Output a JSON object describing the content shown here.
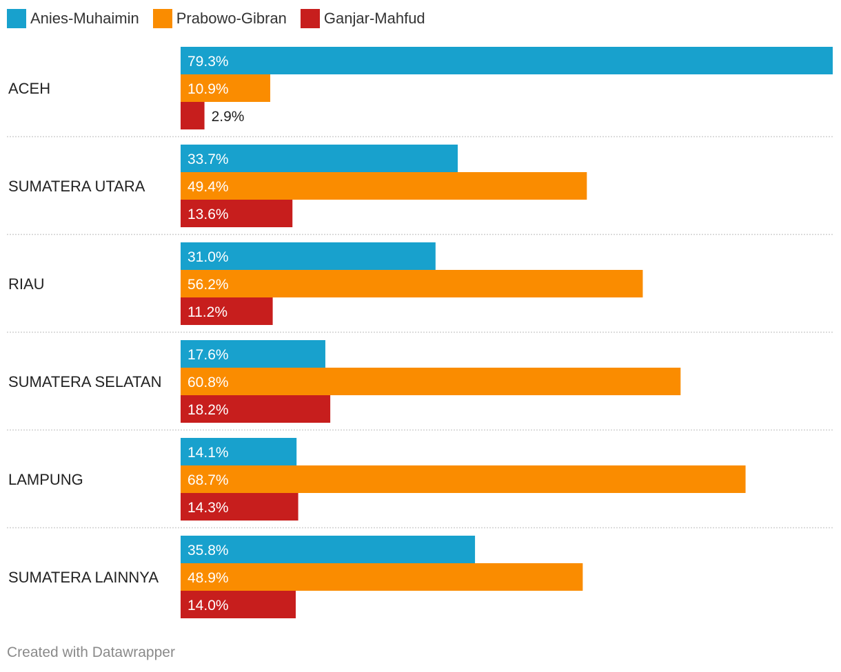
{
  "chart_data": {
    "type": "bar",
    "orientation": "horizontal",
    "grouped": true,
    "categories": [
      "ACEH",
      "SUMATERA UTARA",
      "RIAU",
      "SUMATERA SELATAN",
      "LAMPUNG",
      "SUMATERA LAINNYA"
    ],
    "series": [
      {
        "name": "Anies-Muhaimin",
        "color": "#18a1cd",
        "values": [
          79.3,
          33.7,
          31.0,
          17.6,
          14.1,
          35.8
        ]
      },
      {
        "name": "Prabowo-Gibran",
        "color": "#fa8c00",
        "values": [
          10.9,
          49.4,
          56.2,
          60.8,
          68.7,
          48.9
        ]
      },
      {
        "name": "Ganjar-Mahfud",
        "color": "#c71e1d",
        "values": [
          2.9,
          13.6,
          11.2,
          18.2,
          14.3,
          14.0
        ]
      }
    ],
    "value_suffix": "%",
    "xlim": [
      0,
      79.3
    ],
    "legend_position": "top-left"
  },
  "footer": "Created with Datawrapper"
}
